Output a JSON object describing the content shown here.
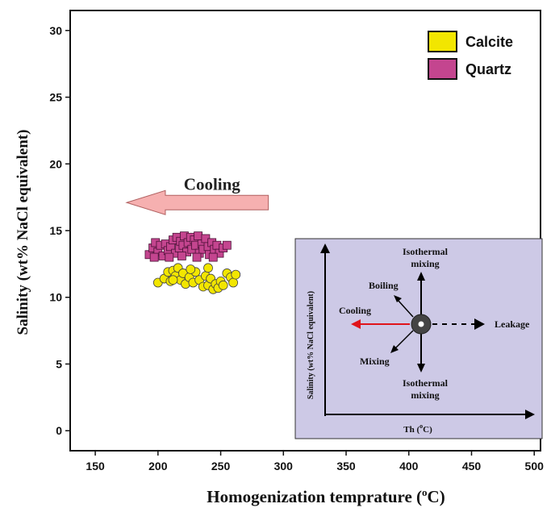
{
  "chart_data": {
    "type": "scatter",
    "xlabel": "Homogenization temprature (",
    "xlabel_sup": "o",
    "xlabel_end": "C)",
    "ylabel": "Salinity (wt% NaCl equivalent)",
    "xlim": [
      130,
      505
    ],
    "ylim": [
      -1.5,
      31.5
    ],
    "xticks": [
      150,
      200,
      250,
      300,
      350,
      400,
      450,
      500
    ],
    "yticks": [
      0,
      5,
      10,
      15,
      20,
      25,
      30
    ],
    "legend_position": "top-right",
    "series": [
      {
        "name": "Calcite",
        "marker": "circle",
        "color": "#f2e600",
        "points": [
          [
            200,
            11.1
          ],
          [
            205,
            11.4
          ],
          [
            208,
            11.9
          ],
          [
            210,
            11.2
          ],
          [
            212,
            12.0
          ],
          [
            214,
            11.6
          ],
          [
            216,
            12.2
          ],
          [
            218,
            11.3
          ],
          [
            220,
            11.8
          ],
          [
            222,
            11.0
          ],
          [
            225,
            11.5
          ],
          [
            228,
            11.1
          ],
          [
            230,
            11.9
          ],
          [
            233,
            11.3
          ],
          [
            236,
            10.8
          ],
          [
            238,
            11.6
          ],
          [
            240,
            10.9
          ],
          [
            242,
            11.4
          ],
          [
            244,
            10.6
          ],
          [
            246,
            11.0
          ],
          [
            248,
            10.7
          ],
          [
            250,
            11.2
          ],
          [
            252,
            10.9
          ],
          [
            255,
            11.8
          ],
          [
            258,
            11.5
          ],
          [
            260,
            11.1
          ],
          [
            262,
            11.7
          ],
          [
            212,
            11.3
          ],
          [
            226,
            12.1
          ],
          [
            240,
            12.2
          ]
        ]
      },
      {
        "name": "Quartz",
        "marker": "square",
        "color": "#c4458f",
        "points": [
          [
            193,
            13.2
          ],
          [
            196,
            13.7
          ],
          [
            198,
            14.1
          ],
          [
            200,
            13.4
          ],
          [
            202,
            13.9
          ],
          [
            204,
            13.1
          ],
          [
            206,
            14.0
          ],
          [
            208,
            13.5
          ],
          [
            210,
            13.8
          ],
          [
            212,
            14.3
          ],
          [
            214,
            13.3
          ],
          [
            215,
            14.5
          ],
          [
            217,
            13.7
          ],
          [
            218,
            14.2
          ],
          [
            220,
            13.9
          ],
          [
            221,
            14.6
          ],
          [
            223,
            13.4
          ],
          [
            224,
            14.1
          ],
          [
            226,
            14.5
          ],
          [
            227,
            13.6
          ],
          [
            229,
            14.3
          ],
          [
            230,
            13.9
          ],
          [
            232,
            14.6
          ],
          [
            233,
            13.3
          ],
          [
            235,
            14.0
          ],
          [
            236,
            13.6
          ],
          [
            238,
            14.4
          ],
          [
            240,
            13.8
          ],
          [
            241,
            13.2
          ],
          [
            243,
            14.1
          ],
          [
            245,
            13.6
          ],
          [
            247,
            13.9
          ],
          [
            249,
            13.3
          ],
          [
            252,
            13.7
          ],
          [
            255,
            13.9
          ],
          [
            197,
            13.0
          ],
          [
            209,
            13.0
          ],
          [
            219,
            13.1
          ],
          [
            231,
            13.0
          ],
          [
            244,
            13.0
          ]
        ]
      }
    ],
    "annotation": {
      "label": "Cooling",
      "arrow_from": [
        288,
        17.1
      ],
      "arrow_to": [
        175,
        17.1
      ],
      "arrow_color": "#f6b0b0"
    },
    "inset": {
      "xlabel": "Th (",
      "xlabel_sup": "o",
      "xlabel_end": "C)",
      "ylabel": "Salinity (wt% NaCl equivalent)",
      "labels": {
        "isothermal_top": [
          "Isothermal",
          "mixing"
        ],
        "isothermal_bottom": [
          "Isothermal",
          "mixing"
        ],
        "boiling": "Boiling",
        "cooling": "Cooling",
        "mixing": "Mixing",
        "leakage": "Leakage"
      },
      "background": "#cdc9e6",
      "cooling_color": "#e0141a"
    }
  }
}
